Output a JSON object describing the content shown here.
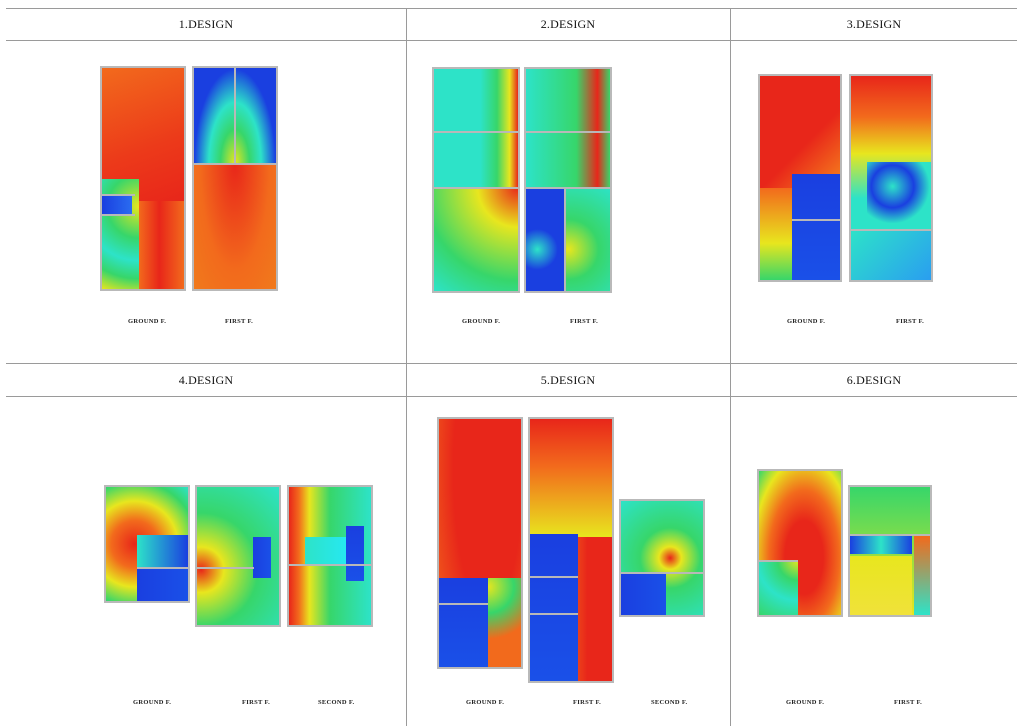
{
  "panels": [
    {
      "title": "1.DESIGN",
      "labels": [
        "GROUND F.",
        "FIRST F."
      ]
    },
    {
      "title": "2.DESIGN",
      "labels": [
        "GROUND F.",
        "FIRST F."
      ]
    },
    {
      "title": "3.DESIGN",
      "labels": [
        "GROUND F.",
        "FIRST F."
      ]
    },
    {
      "title": "4.DESIGN",
      "labels": [
        "GROUND F.",
        "FIRST F.",
        "SECOND F."
      ]
    },
    {
      "title": "5.DESIGN",
      "labels": [
        "GROUND F.",
        "FIRST F.",
        "SECOND F."
      ]
    },
    {
      "title": "6.DESIGN",
      "labels": [
        "GROUND F.",
        "FIRST F."
      ]
    }
  ],
  "colors": {
    "red": "#e8261a",
    "orange": "#f26a1c",
    "yellow": "#e8e61e",
    "green": "#37d66a",
    "cyan": "#2de3c8",
    "blue": "#1a3fe0",
    "wall": "#b8b8b8",
    "grid": "#9a9a9a"
  }
}
